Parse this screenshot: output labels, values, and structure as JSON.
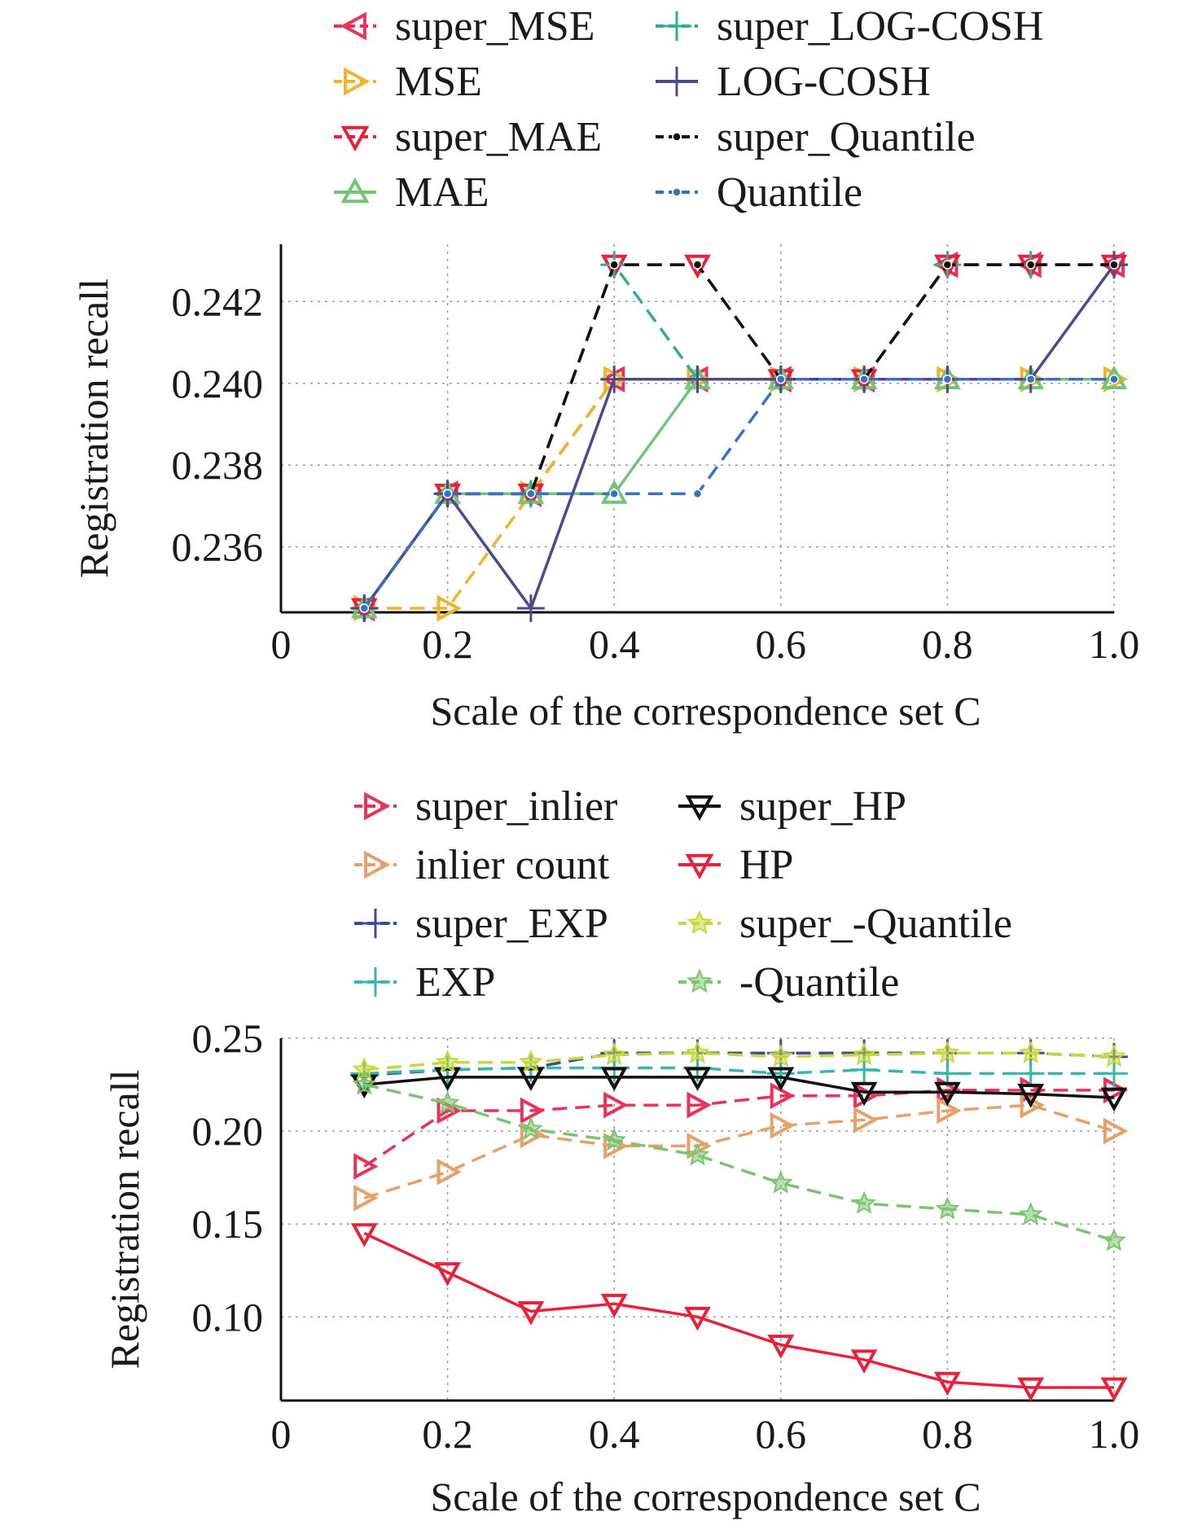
{
  "chart_data": [
    {
      "type": "line",
      "xlabel": "Scale of the correspondence set C",
      "ylabel": "Registration recall",
      "xlim": [
        0,
        1.0
      ],
      "ylim": [
        0.2344,
        0.2434
      ],
      "xticks": [
        0,
        0.2,
        0.4,
        0.6,
        0.8,
        1.0
      ],
      "xtick_labels": [
        "0",
        "0.2",
        "0.4",
        "0.6",
        "0.8",
        "1.0"
      ],
      "yticks": [
        0.236,
        0.238,
        0.24,
        0.242
      ],
      "ytick_labels": [
        "0.236",
        "0.238",
        "0.240",
        "0.242"
      ],
      "grid": true,
      "legend_position": "top, two columns",
      "x": [
        0.1,
        0.2,
        0.3,
        0.4,
        0.5,
        0.6,
        0.7,
        0.8,
        0.9,
        1.0
      ],
      "series": [
        {
          "name": "super_MSE",
          "color": "#e8325a",
          "marker": "triangle-left",
          "dash": "dashed",
          "values": [
            0.2345,
            0.2373,
            0.2373,
            0.2401,
            0.2401,
            0.2401,
            0.2401,
            0.2429,
            0.2429,
            0.2429
          ]
        },
        {
          "name": "MSE",
          "color": "#f0b429",
          "marker": "triangle-right",
          "dash": "dashed",
          "values": [
            0.2345,
            0.2345,
            0.2373,
            0.2401,
            0.2401,
            0.2401,
            0.2401,
            0.2401,
            0.2401,
            0.2401
          ]
        },
        {
          "name": "super_MAE",
          "color": "#e8203a",
          "marker": "triangle-down",
          "dash": "dashed",
          "values": [
            0.2345,
            0.2373,
            0.2373,
            0.2429,
            0.2429,
            0.2401,
            0.2401,
            0.2429,
            0.2429,
            0.2429
          ]
        },
        {
          "name": "MAE",
          "color": "#72c47a",
          "marker": "triangle-up",
          "dash": "solid",
          "values": [
            0.2345,
            0.2373,
            0.2373,
            0.2373,
            0.2401,
            0.2401,
            0.2401,
            0.2401,
            0.2401,
            0.2401
          ]
        },
        {
          "name": "super_LOG-COSH",
          "color": "#2fae96",
          "marker": "plus",
          "dash": "dashed",
          "values": [
            0.2345,
            0.2373,
            0.2373,
            0.2429,
            0.2401,
            0.2401,
            0.2401,
            0.2429,
            0.2429,
            0.2429
          ]
        },
        {
          "name": "LOG-COSH",
          "color": "#4a4a8c",
          "marker": "plus",
          "dash": "solid",
          "values": [
            0.2345,
            0.2373,
            0.2345,
            0.2401,
            0.2401,
            0.2401,
            0.2401,
            0.2401,
            0.2401,
            0.2429
          ]
        },
        {
          "name": "super_Quantile",
          "color": "#111111",
          "marker": "dot",
          "dash": "dashed",
          "values": [
            0.2345,
            0.2373,
            0.2373,
            0.2429,
            0.2429,
            0.2401,
            0.2401,
            0.2429,
            0.2429,
            0.2429
          ]
        },
        {
          "name": "Quantile",
          "color": "#3a6fc8",
          "marker": "dot",
          "dash": "dashed",
          "values": [
            0.2345,
            0.2373,
            0.2373,
            0.2373,
            0.2373,
            0.2401,
            0.2401,
            0.2401,
            0.2401,
            0.2401
          ]
        }
      ]
    },
    {
      "type": "line",
      "xlabel": "Scale of the correspondence set C",
      "ylabel": "Registration recall",
      "xlim": [
        0,
        1.0
      ],
      "ylim": [
        0.055,
        0.25
      ],
      "xticks": [
        0,
        0.2,
        0.4,
        0.6,
        0.8,
        1.0
      ],
      "xtick_labels": [
        "0",
        "0.2",
        "0.4",
        "0.6",
        "0.8",
        "1.0"
      ],
      "yticks": [
        0.1,
        0.15,
        0.2,
        0.25
      ],
      "ytick_labels": [
        "0.10",
        "0.15",
        "0.20",
        "0.25"
      ],
      "grid": true,
      "legend_position": "top, two columns",
      "x": [
        0.1,
        0.2,
        0.3,
        0.4,
        0.5,
        0.6,
        0.7,
        0.8,
        0.9,
        1.0
      ],
      "series": [
        {
          "name": "super_inlier",
          "color": "#e8325a",
          "marker": "triangle-right",
          "dash": "dashed",
          "values": [
            0.181,
            0.211,
            0.211,
            0.214,
            0.214,
            0.219,
            0.219,
            0.222,
            0.222,
            0.222
          ]
        },
        {
          "name": "inlier count",
          "color": "#e6a06a",
          "marker": "triangle-right",
          "dash": "dashed",
          "values": [
            0.164,
            0.178,
            0.198,
            0.192,
            0.192,
            0.203,
            0.206,
            0.211,
            0.214,
            0.2
          ]
        },
        {
          "name": "super_EXP",
          "color": "#3f4a9c",
          "marker": "plus",
          "dash": "dashed",
          "values": [
            0.23,
            0.233,
            0.234,
            0.242,
            0.242,
            0.242,
            0.242,
            0.242,
            0.242,
            0.24
          ]
        },
        {
          "name": "EXP",
          "color": "#35b8a8",
          "marker": "plus",
          "dash": "dashed",
          "values": [
            0.231,
            0.233,
            0.234,
            0.234,
            0.234,
            0.231,
            0.233,
            0.231,
            0.231,
            0.231
          ]
        },
        {
          "name": "super_HP",
          "color": "#111111",
          "marker": "triangle-down",
          "dash": "solid",
          "values": [
            0.225,
            0.229,
            0.229,
            0.229,
            0.229,
            0.229,
            0.221,
            0.221,
            0.22,
            0.218
          ]
        },
        {
          "name": "HP",
          "color": "#e8203a",
          "marker": "triangle-down",
          "dash": "solid",
          "values": [
            0.145,
            0.124,
            0.103,
            0.107,
            0.1,
            0.085,
            0.077,
            0.065,
            0.062,
            0.062
          ]
        },
        {
          "name": "super_-Quantile",
          "color": "#c8d83a",
          "marker": "star",
          "dash": "dashed",
          "values": [
            0.233,
            0.237,
            0.237,
            0.241,
            0.242,
            0.24,
            0.241,
            0.242,
            0.242,
            0.24
          ]
        },
        {
          "name": "-Quantile",
          "color": "#7cc46e",
          "marker": "star",
          "dash": "dashed",
          "values": [
            0.225,
            0.215,
            0.201,
            0.195,
            0.187,
            0.172,
            0.161,
            0.158,
            0.155,
            0.141
          ]
        }
      ]
    }
  ]
}
